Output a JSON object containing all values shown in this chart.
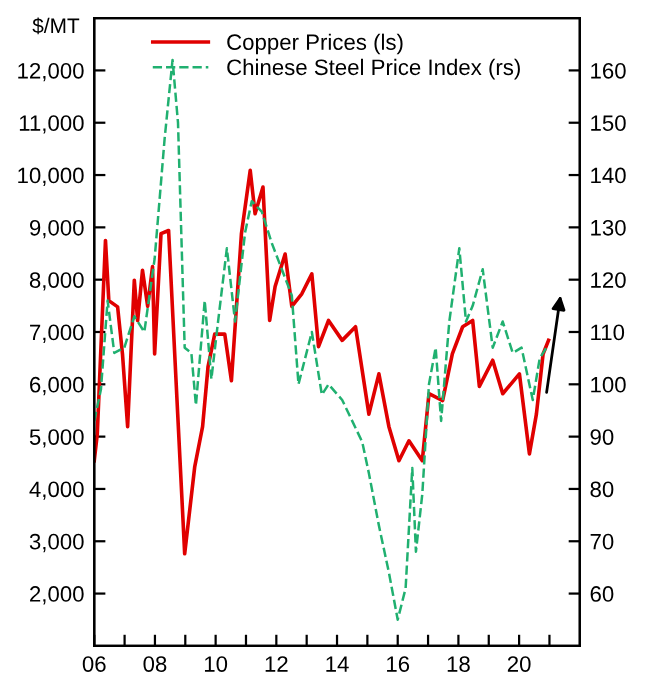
{
  "chart_data": {
    "type": "line",
    "ylabel": "$/MT",
    "legend": "top",
    "grid": false,
    "xlim": [
      6,
      22
    ],
    "ylim": [
      1000,
      13000
    ],
    "y2lim": [
      50,
      170
    ],
    "xticks": [
      {
        "value": 6,
        "label": "06"
      },
      {
        "value": 7,
        "label": null
      },
      {
        "value": 8,
        "label": "08"
      },
      {
        "value": 9,
        "label": null
      },
      {
        "value": 10,
        "label": "10"
      },
      {
        "value": 11,
        "label": null
      },
      {
        "value": 12,
        "label": "12"
      },
      {
        "value": 13,
        "label": null
      },
      {
        "value": 14,
        "label": "14"
      },
      {
        "value": 15,
        "label": null
      },
      {
        "value": 16,
        "label": "16"
      },
      {
        "value": 17,
        "label": null
      },
      {
        "value": 18,
        "label": "18"
      },
      {
        "value": 19,
        "label": null
      },
      {
        "value": 20,
        "label": "20"
      },
      {
        "value": 21,
        "label": null
      }
    ],
    "yticks": [
      {
        "value": 2000,
        "label": "2,000"
      },
      {
        "value": 3000,
        "label": "3,000"
      },
      {
        "value": 4000,
        "label": "4,000"
      },
      {
        "value": 5000,
        "label": "5,000"
      },
      {
        "value": 6000,
        "label": "6,000"
      },
      {
        "value": 7000,
        "label": "7,000"
      },
      {
        "value": 8000,
        "label": "8,000"
      },
      {
        "value": 9000,
        "label": "9,000"
      },
      {
        "value": 10000,
        "label": "10,000"
      },
      {
        "value": 11000,
        "label": "11,000"
      },
      {
        "value": 12000,
        "label": "12,000"
      }
    ],
    "y2ticks": [
      60,
      70,
      80,
      90,
      100,
      110,
      120,
      130,
      140,
      150,
      160
    ],
    "series": [
      {
        "name": "Copper Prices (ls)",
        "color": "#e00000",
        "line_style": "solid",
        "x": [
          6.0,
          6.1,
          6.37,
          6.48,
          6.77,
          6.93,
          7.1,
          7.32,
          7.43,
          7.59,
          7.76,
          7.92,
          7.99,
          8.2,
          8.45,
          8.75,
          8.98,
          9.31,
          9.57,
          9.75,
          9.97,
          10.3,
          10.52,
          10.85,
          11.14,
          11.3,
          11.56,
          11.78,
          11.96,
          12.29,
          12.51,
          12.84,
          13.17,
          13.39,
          13.72,
          14.17,
          14.61,
          15.05,
          15.38,
          15.71,
          16.04,
          16.37,
          16.81,
          17.03,
          17.48,
          17.8,
          18.14,
          18.47,
          18.69,
          19.13,
          19.46,
          20.01,
          20.34,
          20.57,
          20.79,
          20.97
        ],
        "values": [
          4540,
          5050,
          8750,
          7600,
          7480,
          6580,
          5190,
          7990,
          7220,
          8180,
          7490,
          8250,
          6580,
          8880,
          8940,
          5430,
          2760,
          4420,
          5190,
          6340,
          6960,
          6960,
          6070,
          8880,
          10090,
          9260,
          9770,
          7220,
          7870,
          8490,
          7490,
          7730,
          8110,
          6720,
          7220,
          6840,
          7100,
          5430,
          6200,
          5190,
          4540,
          4920,
          4540,
          5820,
          5690,
          6580,
          7100,
          7220,
          5960,
          6460,
          5820,
          6200,
          4670,
          5430,
          6580,
          6840
        ]
      },
      {
        "name": "Chinese Steel Price Index (rs)",
        "color": "#20b070",
        "line_style": "dashed",
        "axis": "y2",
        "x": [
          6.0,
          6.22,
          6.44,
          6.66,
          6.99,
          7.32,
          7.65,
          7.99,
          8.32,
          8.58,
          8.76,
          8.98,
          9.2,
          9.35,
          9.64,
          9.86,
          10.08,
          10.37,
          10.64,
          10.97,
          11.19,
          11.52,
          11.85,
          12.18,
          12.51,
          12.73,
          13.17,
          13.5,
          13.72,
          14.17,
          14.83,
          15.05,
          15.38,
          15.71,
          16.0,
          16.26,
          16.48,
          16.6,
          16.81,
          17.03,
          17.25,
          17.43,
          17.7,
          18.03,
          18.25,
          18.47,
          18.8,
          19.13,
          19.46,
          19.79,
          20.08,
          20.45,
          20.68,
          20.9
        ],
        "values": [
          93,
          99,
          116,
          106,
          107,
          113,
          110,
          124,
          147,
          162,
          150,
          107,
          106,
          96,
          116,
          101,
          112,
          126,
          112,
          129,
          135,
          133,
          127,
          122,
          117,
          100,
          110,
          98,
          100,
          97,
          89,
          83,
          73,
          64,
          55,
          61,
          84,
          68,
          79,
          100,
          107,
          93,
          112,
          126,
          112,
          115,
          122,
          107,
          112,
          106,
          107,
          97,
          105,
          107
        ]
      }
    ]
  }
}
